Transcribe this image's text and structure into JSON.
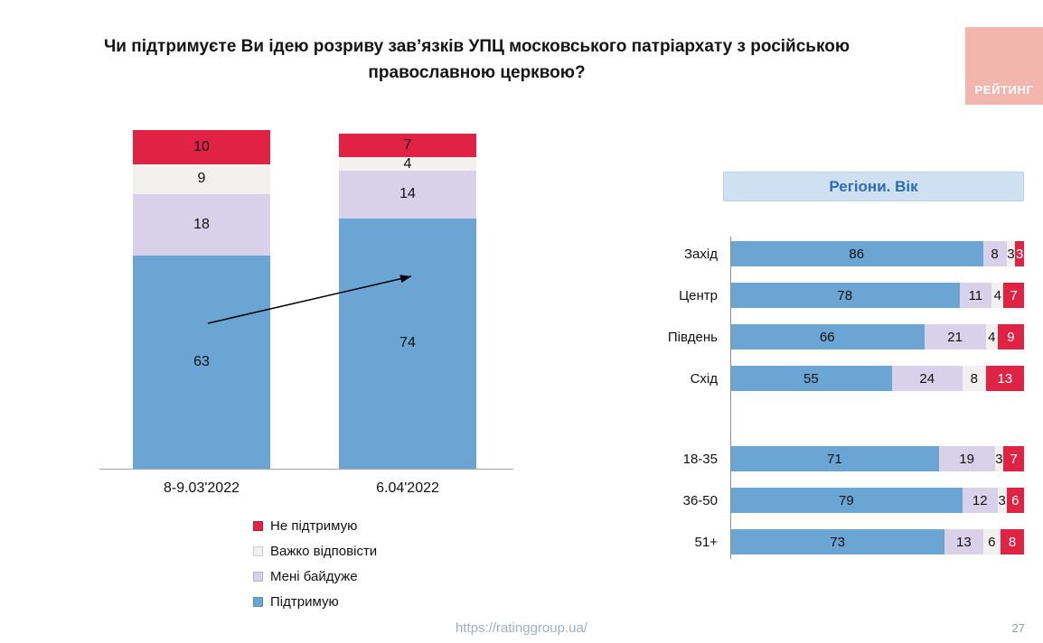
{
  "title": "Чи підтримуєте Ви ідею розриву зав’язків УПЦ московського патріархату з російською православною церквою?",
  "logo": {
    "text": "РЕЙТИНГ",
    "bg": "#f2b6ae"
  },
  "colors": {
    "support": "#6aa5d4",
    "indifferent": "#d9d0e9",
    "hard": "#f2f1ef",
    "oppose": "#e02345"
  },
  "legend": [
    {
      "key": "oppose",
      "label": "Не підтримую"
    },
    {
      "key": "hard",
      "label": "Важко відповісти"
    },
    {
      "key": "indifferent",
      "label": "Мені байдуже"
    },
    {
      "key": "support",
      "label": "Підтримую"
    }
  ],
  "chart_data": [
    {
      "type": "bar",
      "subtype": "stacked-column",
      "categories": [
        "8-9.03'2022",
        "6.04'2022"
      ],
      "series": [
        {
          "key": "support",
          "name": "Підтримую",
          "values": [
            63,
            74
          ]
        },
        {
          "key": "indifferent",
          "name": "Мені байдуже",
          "values": [
            18,
            14
          ]
        },
        {
          "key": "hard",
          "name": "Важко відповісти",
          "values": [
            9,
            4
          ]
        },
        {
          "key": "oppose",
          "name": "Не підтримую",
          "values": [
            10,
            7
          ]
        }
      ],
      "ylim": [
        0,
        100
      ],
      "annotation": "upward trend arrow from first to second column"
    },
    {
      "type": "bar",
      "subtype": "stacked-bar-horizontal",
      "title": "Регіони. Вік",
      "series_keys": [
        "support",
        "indifferent",
        "hard",
        "oppose"
      ],
      "series_names": [
        "Підтримую",
        "Мені байдуже",
        "Важко відповісти",
        "Не підтримую"
      ],
      "groups": [
        {
          "name": "regions",
          "categories": [
            "Захід",
            "Центр",
            "Південь",
            "Схід"
          ],
          "rows": [
            [
              86,
              8,
              3,
              3
            ],
            [
              78,
              11,
              4,
              7
            ],
            [
              66,
              21,
              4,
              9
            ],
            [
              55,
              24,
              8,
              13
            ]
          ]
        },
        {
          "name": "age",
          "categories": [
            "18-35",
            "36-50",
            "51+"
          ],
          "rows": [
            [
              71,
              19,
              3,
              7
            ],
            [
              79,
              12,
              3,
              6
            ],
            [
              73,
              13,
              6,
              8
            ]
          ]
        }
      ],
      "xlim": [
        0,
        100
      ]
    }
  ],
  "footer": {
    "url": "https://ratinggroup.ua/",
    "page": "27"
  }
}
